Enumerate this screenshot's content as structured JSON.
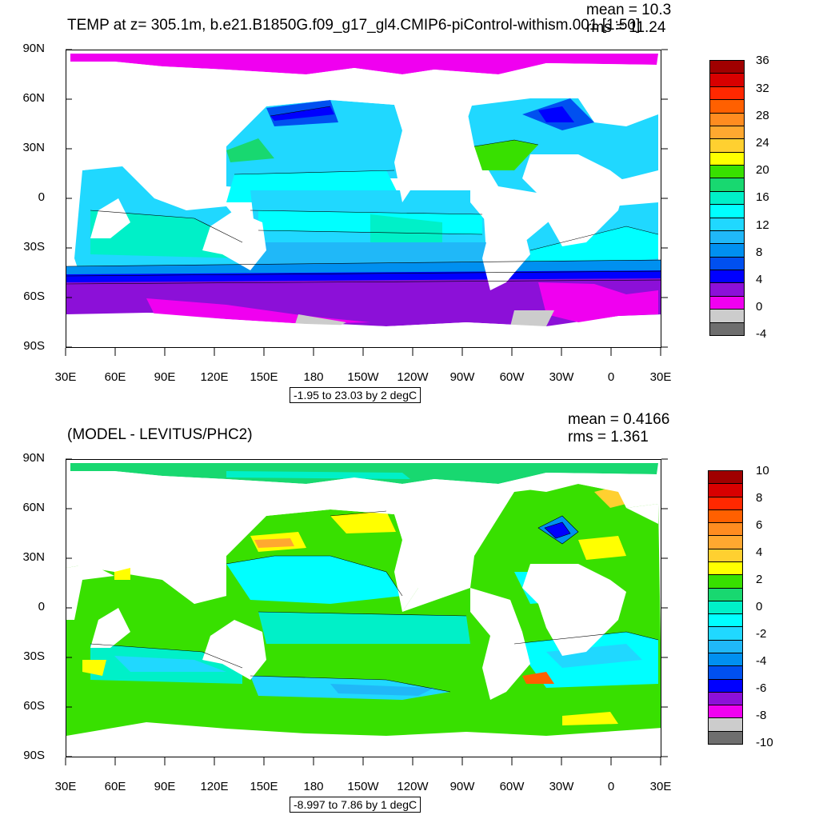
{
  "panels": [
    {
      "id": "top",
      "title": "TEMP at z= 305.1m, b.e21.B1850G.f09_g17_gl4.CMIP6-piControl-withism.001 [1:50]",
      "mean_text": "mean = 10.3",
      "rms_text": "rms = 11.24",
      "range_text": "-1.95 to 23.03 by 2 degC",
      "lat_labels": [
        "90N",
        "60N",
        "30N",
        "0",
        "30S",
        "60S",
        "90S"
      ],
      "lon_labels": [
        "30E",
        "60E",
        "90E",
        "120E",
        "150E",
        "180",
        "150W",
        "120W",
        "90W",
        "60W",
        "30W",
        "0",
        "30E"
      ],
      "colorbar": {
        "labels": [
          "36",
          "32",
          "28",
          "24",
          "20",
          "16",
          "12",
          "8",
          "4",
          "0",
          "-4"
        ],
        "colors": [
          "#a00000",
          "#d80000",
          "#ff2800",
          "#ff6000",
          "#ff8c20",
          "#ffa830",
          "#ffd030",
          "#ffff00",
          "#38e000",
          "#18d870",
          "#00f0c8",
          "#00ffff",
          "#20d8ff",
          "#20b8f8",
          "#0090f0",
          "#0050f0",
          "#0000ff",
          "#8c10d8",
          "#f000f0",
          "#cccccc",
          "#6e6e6e"
        ]
      }
    },
    {
      "id": "bottom",
      "title": "(MODEL - LEVITUS/PHC2)",
      "mean_text": "mean = 0.4166",
      "rms_text": "rms = 1.361",
      "range_text": "-8.997 to 7.86 by 1 degC",
      "lat_labels": [
        "90N",
        "60N",
        "30N",
        "0",
        "30S",
        "60S",
        "90S"
      ],
      "lon_labels": [
        "30E",
        "60E",
        "90E",
        "120E",
        "150E",
        "180",
        "150W",
        "120W",
        "90W",
        "60W",
        "30W",
        "0",
        "30E"
      ],
      "colorbar": {
        "labels": [
          "10",
          "8",
          "6",
          "4",
          "2",
          "0",
          "-2",
          "-4",
          "-6",
          "-8",
          "-10"
        ],
        "colors": [
          "#a00000",
          "#d80000",
          "#ff2800",
          "#ff6000",
          "#ff8c20",
          "#ffa830",
          "#ffd030",
          "#ffff00",
          "#38e000",
          "#18d870",
          "#00f0c8",
          "#00ffff",
          "#20d8ff",
          "#20b8f8",
          "#0090f0",
          "#0050f0",
          "#0000ff",
          "#8c10d8",
          "#f000f0",
          "#cccccc",
          "#6e6e6e"
        ]
      }
    }
  ]
}
